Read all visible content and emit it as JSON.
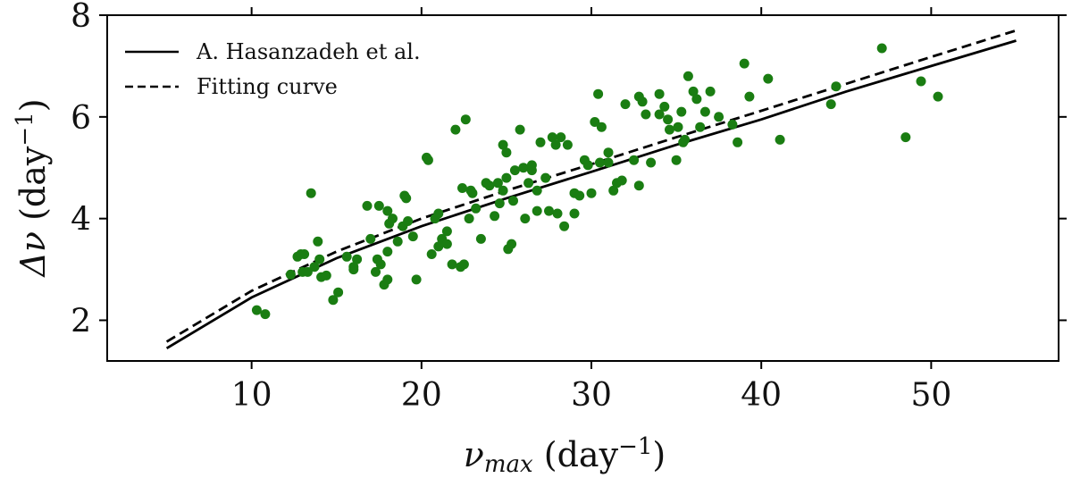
{
  "chart_data": {
    "type": "scatter",
    "xlabel": {
      "base": "ν",
      "sub": "max",
      "rest": " (day",
      "sup": "−1",
      "close": ")"
    },
    "ylabel": {
      "base": "Δν",
      "rest": " (day",
      "sup": "−1",
      "close": ")"
    },
    "xlim": [
      1.5,
      57.5
    ],
    "ylim": [
      1.2,
      8.0
    ],
    "xticks": [
      10,
      20,
      30,
      40,
      50
    ],
    "yticks": [
      2,
      4,
      6,
      8
    ],
    "grid": false,
    "legend_position": "top-left",
    "marker_color": "#1a7d12",
    "line_color": "#000000",
    "series": [
      {
        "name": "A. Hasanzadeh et al.",
        "kind": "line",
        "style": "solid",
        "x": [
          5,
          10,
          15,
          20,
          25,
          30,
          35,
          40,
          45,
          50,
          55
        ],
        "y": [
          1.45,
          2.45,
          3.22,
          3.85,
          4.4,
          4.92,
          5.45,
          5.95,
          6.5,
          7.0,
          7.5
        ]
      },
      {
        "name": "Fitting curve",
        "kind": "line",
        "style": "dashed",
        "x": [
          5,
          10,
          15,
          20,
          25,
          30,
          35,
          40,
          45,
          50,
          55
        ],
        "y": [
          1.58,
          2.58,
          3.35,
          4.0,
          4.55,
          5.07,
          5.6,
          6.12,
          6.65,
          7.18,
          7.7
        ]
      },
      {
        "name": "",
        "kind": "scatter",
        "x": [
          10.3,
          10.8,
          12.3,
          12.7,
          13.0,
          13.1,
          13.5,
          13.7,
          13.9,
          14.1,
          14.4,
          14.8,
          15.1,
          15.6,
          16.0,
          16.2,
          17.0,
          17.3,
          17.4,
          17.6,
          17.8,
          18.0,
          18.0,
          18.1,
          18.3,
          18.6,
          18.9,
          19.1,
          19.5,
          19.7,
          20.3,
          20.4,
          20.6,
          21.0,
          21.2,
          21.5,
          21.8,
          22.0,
          22.3,
          22.4,
          22.6,
          22.9,
          23.2,
          23.5,
          24.0,
          24.3,
          24.6,
          24.8,
          25.0,
          25.1,
          25.3,
          25.5,
          25.8,
          26.0,
          26.3,
          26.5,
          26.8,
          27.0,
          27.3,
          27.7,
          28.0,
          28.4,
          28.6,
          29.0,
          29.3,
          29.6,
          30.0,
          30.2,
          30.4,
          30.6,
          31.0,
          31.3,
          32.0,
          32.5,
          32.8,
          33.2,
          33.5,
          34.0,
          34.3,
          34.6,
          35.0,
          35.3,
          35.5,
          35.7,
          36.0,
          36.4,
          36.7,
          37.0,
          38.3,
          38.6,
          39.0,
          39.3,
          40.4,
          41.1,
          44.1,
          44.4,
          47.1,
          48.5,
          49.4,
          50.4,
          12.9,
          14.0,
          16.0,
          17.5,
          19.0,
          21.0,
          22.5,
          23.0,
          24.8,
          25.4,
          26.1,
          27.9,
          29.8,
          31.0,
          32.8,
          34.5,
          35.1,
          36.2,
          13.3,
          18.0,
          20.8,
          22.8,
          25.0,
          27.5,
          30.5,
          33.0,
          35.4,
          37.5,
          24.5,
          26.5,
          28.2,
          31.5,
          16.8,
          19.2,
          21.5,
          23.8,
          26.8,
          29.0,
          31.8,
          34.0
        ],
        "y": [
          2.2,
          2.12,
          2.9,
          3.25,
          2.95,
          3.3,
          4.5,
          3.05,
          3.55,
          2.85,
          2.88,
          2.4,
          2.55,
          3.25,
          3.05,
          3.2,
          3.6,
          2.95,
          3.2,
          3.1,
          2.7,
          2.8,
          3.35,
          3.9,
          4.0,
          3.55,
          3.85,
          4.4,
          3.65,
          2.8,
          5.2,
          5.15,
          3.3,
          3.45,
          3.6,
          3.5,
          3.1,
          5.75,
          3.05,
          4.6,
          5.95,
          4.55,
          4.2,
          3.6,
          4.65,
          4.05,
          4.3,
          5.45,
          5.3,
          3.4,
          3.5,
          4.95,
          5.75,
          5.0,
          4.7,
          4.95,
          4.55,
          5.5,
          4.8,
          5.6,
          4.1,
          3.85,
          5.45,
          4.5,
          4.45,
          5.15,
          4.5,
          5.9,
          6.45,
          5.8,
          5.3,
          4.55,
          6.25,
          5.15,
          6.4,
          6.05,
          5.1,
          6.45,
          6.2,
          5.75,
          5.15,
          6.1,
          5.55,
          6.8,
          6.5,
          5.8,
          6.1,
          6.5,
          5.85,
          5.5,
          7.05,
          6.4,
          6.75,
          5.55,
          6.25,
          6.6,
          7.35,
          5.6,
          6.7,
          6.4,
          3.3,
          3.2,
          3.0,
          4.25,
          4.45,
          4.1,
          3.1,
          4.5,
          4.55,
          4.35,
          4.0,
          5.45,
          5.05,
          5.1,
          4.65,
          5.95,
          5.8,
          6.35,
          2.95,
          4.15,
          4.0,
          4.0,
          4.8,
          4.15,
          5.1,
          6.3,
          5.5,
          6.0,
          4.7,
          5.05,
          5.6,
          4.7,
          4.25,
          3.95,
          3.75,
          4.7,
          4.15,
          4.1,
          4.75,
          6.05
        ]
      }
    ]
  }
}
